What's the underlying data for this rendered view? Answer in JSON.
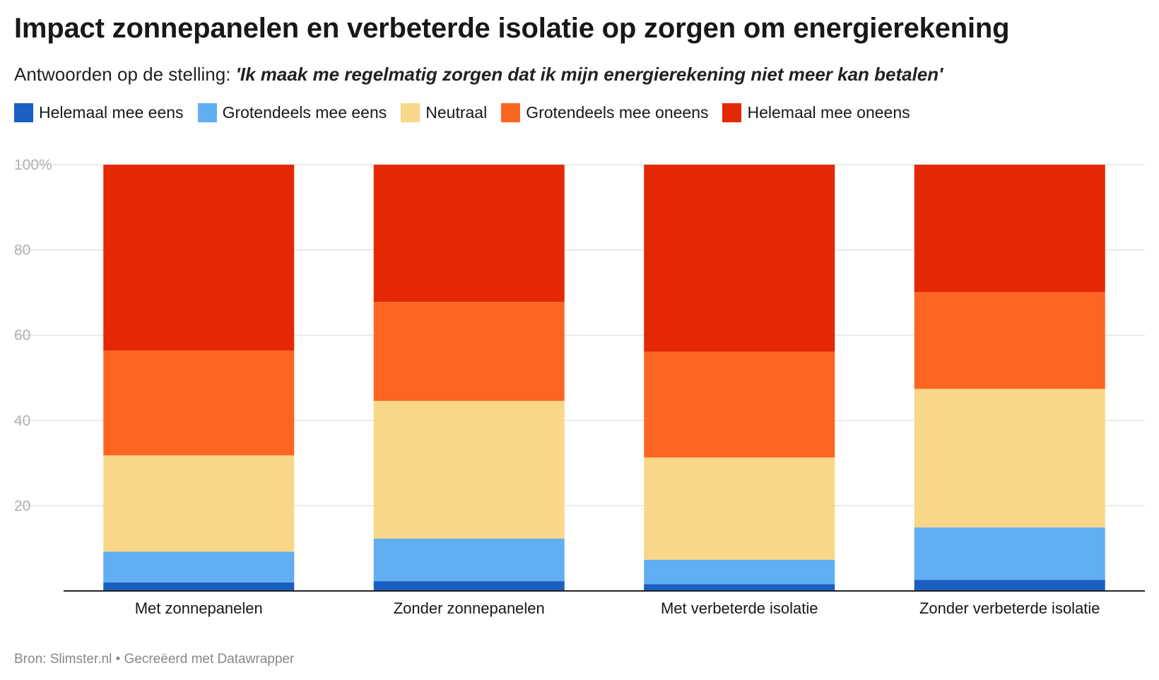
{
  "title": "Impact zonnepanelen en verbeterde isolatie op zorgen om energierekening",
  "subtitle_prefix": "Antwoorden op de stelling: ",
  "subtitle_quote": "'Ik maak me regelmatig zorgen dat ik mijn energierekening niet meer kan betalen'",
  "footer": "Bron: Slimster.nl • Gecreëerd met Datawrapper",
  "chart_data": {
    "type": "bar",
    "stacked": true,
    "categories": [
      "Met zonnepanelen",
      "Zonder zonnepanelen",
      "Met verbeterde isolatie",
      "Zonder verbeterde isolatie"
    ],
    "series": [
      {
        "name": "Helemaal mee eens",
        "color": "#1a5fc2",
        "values": [
          2,
          2.3,
          1.6,
          2.6
        ]
      },
      {
        "name": "Grotendeels mee eens",
        "color": "#62aef2",
        "values": [
          7.2,
          10,
          5.7,
          12.3
        ]
      },
      {
        "name": "Neutraal",
        "color": "#f8d788",
        "values": [
          22.6,
          32.3,
          24,
          32.5
        ]
      },
      {
        "name": "Grotendeels mee oneens",
        "color": "#fd6621",
        "values": [
          24.6,
          23.2,
          24.8,
          22.7
        ]
      },
      {
        "name": "Helemaal mee oneens",
        "color": "#e42805",
        "values": [
          43.6,
          32.2,
          43.9,
          29.9
        ]
      }
    ],
    "ylim": [
      0,
      100
    ],
    "yticks": [
      20,
      40,
      60,
      80,
      100
    ],
    "ytick_labels": [
      "20",
      "40",
      "60",
      "80",
      "100%"
    ],
    "grid": true,
    "legend_position": "top-left"
  }
}
